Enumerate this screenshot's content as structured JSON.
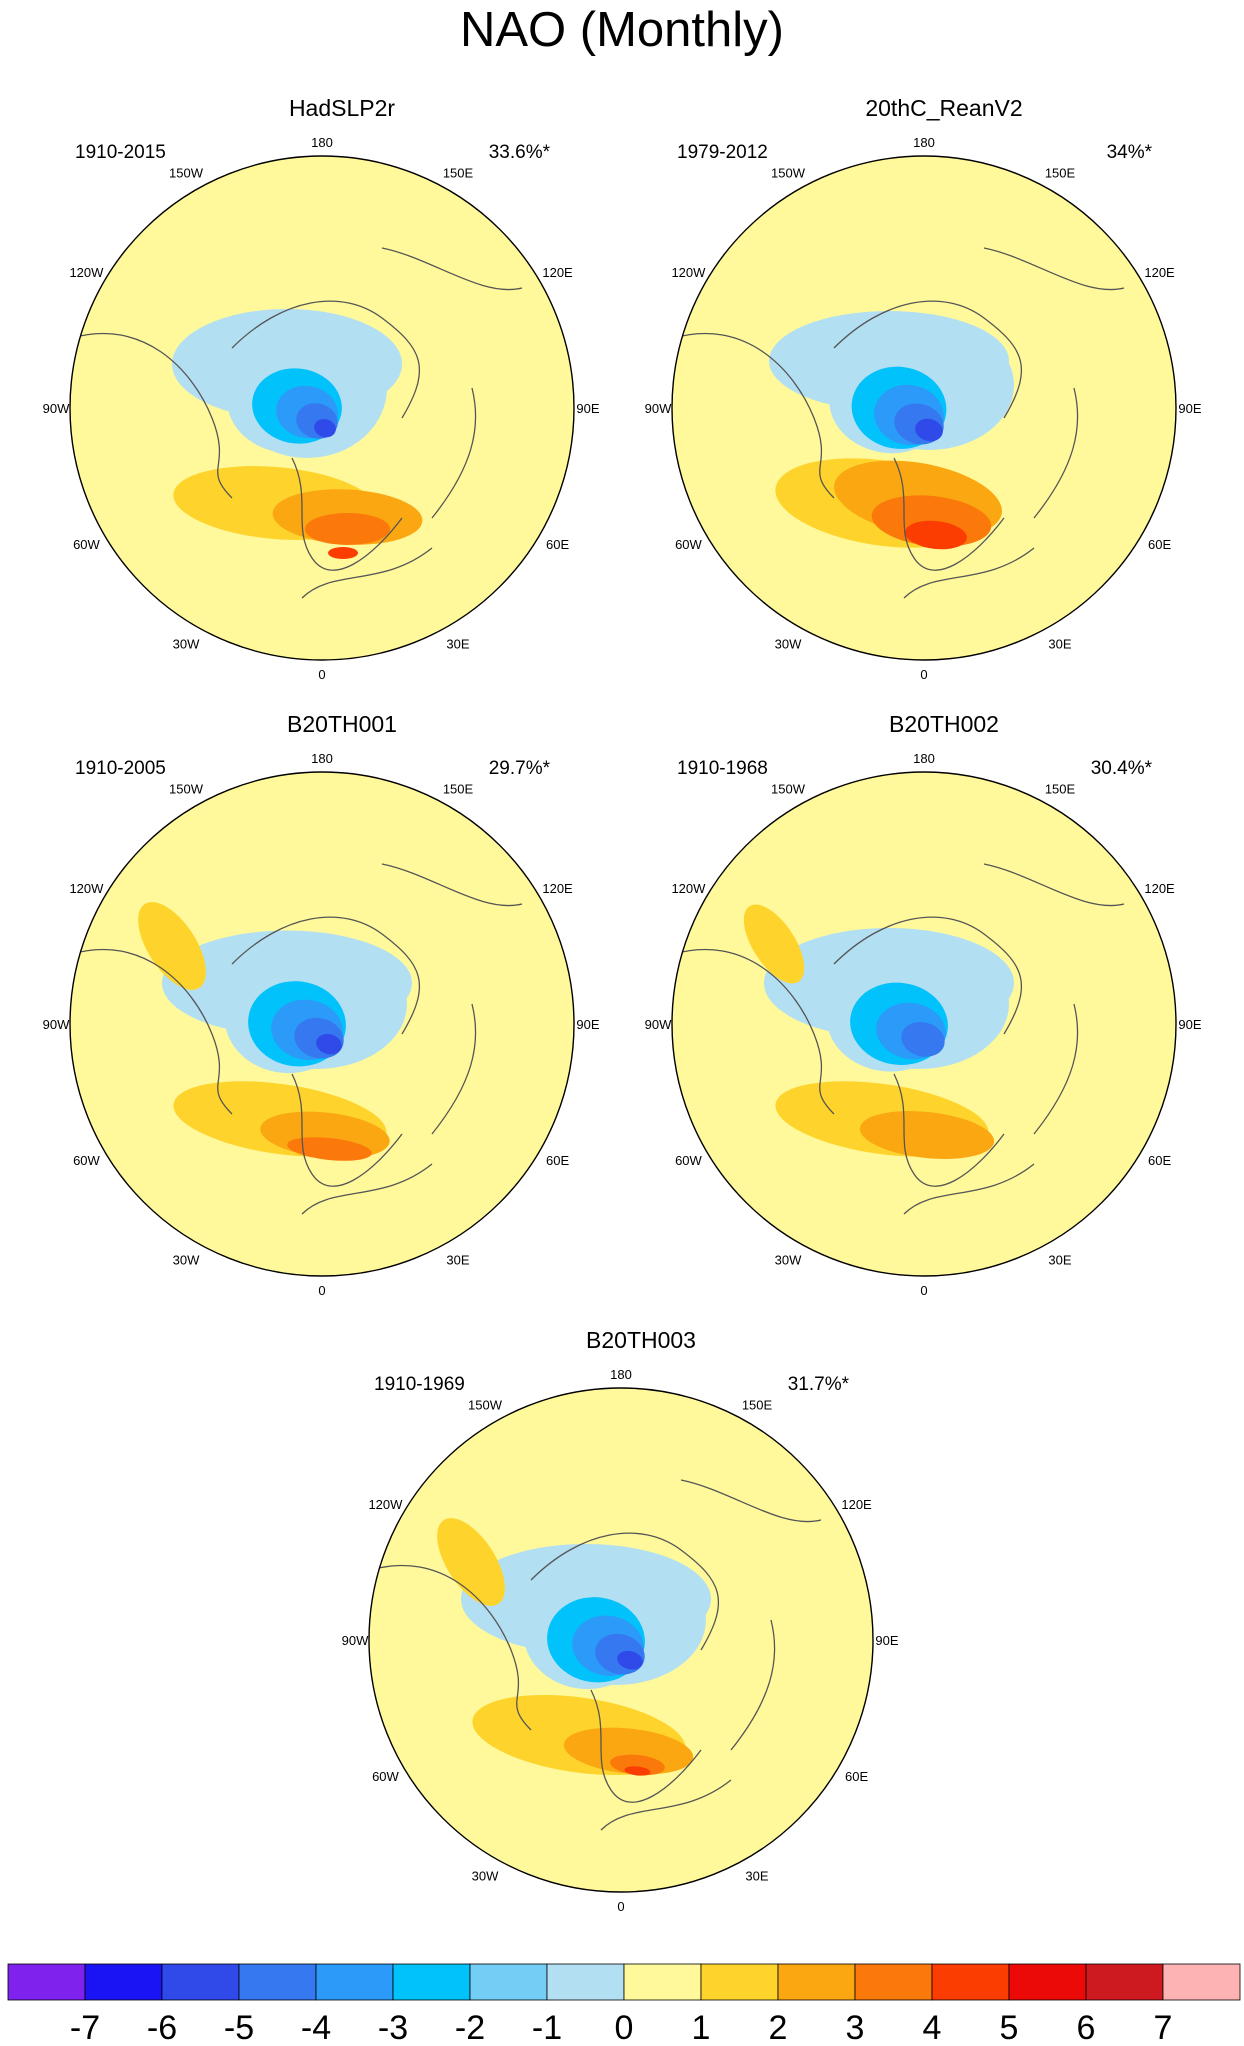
{
  "title": "NAO (Monthly)",
  "chart_data": {
    "type": "heatmap",
    "projection": "north-polar-stereographic",
    "longitude_labels": [
      "180",
      "150E",
      "120E",
      "90E",
      "60E",
      "30E",
      "0",
      "30W",
      "60W",
      "90W",
      "120W",
      "150W"
    ],
    "colorbar": {
      "levels": [
        -7,
        -6,
        -5,
        -4,
        -3,
        -2,
        -1,
        0,
        1,
        2,
        3,
        4,
        5,
        6,
        7
      ],
      "labels": [
        "-7",
        "-6",
        "-5",
        "-4",
        "-3",
        "-2",
        "-1",
        "0",
        "1",
        "2",
        "3",
        "4",
        "5",
        "6",
        "7"
      ],
      "colors": [
        "#7f22ee",
        "#1a14f5",
        "#2f4ae8",
        "#3578ef",
        "#2b9af8",
        "#02c2fb",
        "#73cdf4",
        "#b3dff2",
        "#fff99b",
        "#fed42c",
        "#faa712",
        "#fb790a",
        "#fb3d02",
        "#ec0a09",
        "#cd1920",
        "#fdb2b4"
      ]
    },
    "panels": [
      {
        "id": "hadslp2r",
        "title": "HadSLP2r",
        "period": "1910-2015",
        "variance": "33.6%*"
      },
      {
        "id": "20thc",
        "title": "20thC_ReanV2",
        "period": "1979-2012",
        "variance": "34%*"
      },
      {
        "id": "b20th001",
        "title": "B20TH001",
        "period": "1910-2005",
        "variance": "29.7%*"
      },
      {
        "id": "b20th002",
        "title": "B20TH002",
        "period": "1910-1968",
        "variance": "30.4%*"
      },
      {
        "id": "b20th003",
        "title": "B20TH003",
        "period": "1910-1969",
        "variance": "31.7%*"
      }
    ]
  }
}
